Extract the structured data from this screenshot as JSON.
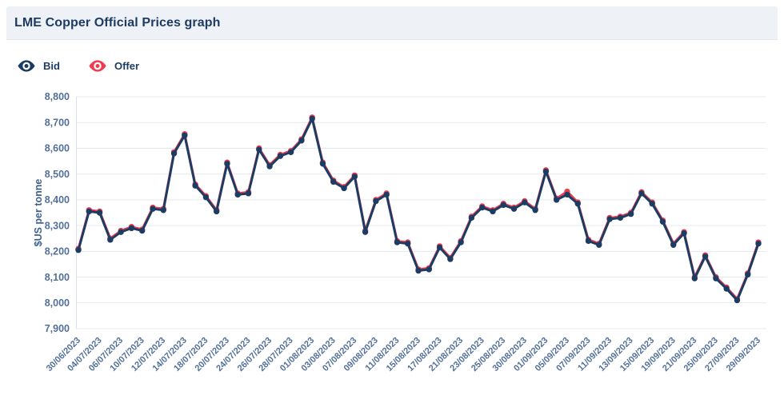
{
  "header": {
    "title": "LME Copper Official Prices graph"
  },
  "legend": {
    "items": [
      {
        "label": "Bid",
        "color": "#1d3c63",
        "icon": "eye-icon"
      },
      {
        "label": "Offer",
        "color": "#ee3d4e",
        "icon": "eye-icon"
      }
    ]
  },
  "colors": {
    "navy": "#1d3c63",
    "red": "#ee3d4e",
    "tick_text": "#527099",
    "gridline": "#e4e9f1",
    "axis_line": "#d9e0ea",
    "header_bg": "#eef1f6"
  },
  "chart_data": {
    "type": "line",
    "title": "LME Copper Official Prices graph",
    "xlabel": "",
    "ylabel": "$US per tonne",
    "ylim": [
      7900,
      8800
    ],
    "ytick_step": 100,
    "ytick_labels": [
      "8,800",
      "8,700",
      "8,600",
      "8,500",
      "8,400",
      "8,300",
      "8,200",
      "8,100",
      "8,000",
      "7,900"
    ],
    "grid": "horizontal",
    "legend_position": "top-left",
    "x_label_every": 2,
    "x": [
      "30/06/2023",
      "03/07/2023",
      "04/07/2023",
      "05/07/2023",
      "06/07/2023",
      "07/07/2023",
      "10/07/2023",
      "11/07/2023",
      "12/07/2023",
      "13/07/2023",
      "14/07/2023",
      "17/07/2023",
      "18/07/2023",
      "19/07/2023",
      "20/07/2023",
      "21/07/2023",
      "24/07/2023",
      "25/07/2023",
      "26/07/2023",
      "27/07/2023",
      "28/07/2023",
      "31/07/2023",
      "01/08/2023",
      "02/08/2023",
      "03/08/2023",
      "04/08/2023",
      "07/08/2023",
      "08/08/2023",
      "09/08/2023",
      "10/08/2023",
      "11/08/2023",
      "14/08/2023",
      "15/08/2023",
      "16/08/2023",
      "17/08/2023",
      "18/08/2023",
      "21/08/2023",
      "22/08/2023",
      "23/08/2023",
      "24/08/2023",
      "25/08/2023",
      "29/08/2023",
      "30/08/2023",
      "31/08/2023",
      "01/09/2023",
      "04/09/2023",
      "05/09/2023",
      "06/09/2023",
      "07/09/2023",
      "08/09/2023",
      "11/09/2023",
      "12/09/2023",
      "13/09/2023",
      "14/09/2023",
      "15/09/2023",
      "18/09/2023",
      "19/09/2023",
      "20/09/2023",
      "21/09/2023",
      "22/09/2023",
      "25/09/2023",
      "26/09/2023",
      "27/09/2023",
      "28/09/2023",
      "29/09/2023"
    ],
    "series": [
      {
        "name": "Offer",
        "color": "#ee3d4e",
        "values": [
          8210,
          8360,
          8355,
          8250,
          8280,
          8295,
          8285,
          8370,
          8365,
          8585,
          8655,
          8460,
          8415,
          8360,
          8545,
          8425,
          8430,
          8600,
          8535,
          8575,
          8590,
          8635,
          8720,
          8545,
          8475,
          8450,
          8495,
          8280,
          8400,
          8425,
          8240,
          8235,
          8130,
          8135,
          8220,
          8175,
          8240,
          8335,
          8375,
          8360,
          8385,
          8370,
          8395,
          8365,
          8515,
          8405,
          8432,
          8390,
          8245,
          8230,
          8330,
          8335,
          8350,
          8430,
          8390,
          8320,
          8230,
          8275,
          8100,
          8185,
          8100,
          8060,
          8015,
          8115,
          8235
        ]
      },
      {
        "name": "Bid",
        "color": "#1d3c63",
        "values": [
          8205,
          8355,
          8350,
          8245,
          8275,
          8290,
          8280,
          8365,
          8360,
          8580,
          8650,
          8455,
          8410,
          8355,
          8540,
          8420,
          8425,
          8595,
          8530,
          8570,
          8585,
          8630,
          8715,
          8540,
          8470,
          8445,
          8490,
          8275,
          8395,
          8420,
          8235,
          8230,
          8125,
          8130,
          8215,
          8170,
          8235,
          8330,
          8370,
          8355,
          8380,
          8365,
          8390,
          8360,
          8510,
          8400,
          8420,
          8385,
          8240,
          8225,
          8325,
          8330,
          8345,
          8425,
          8385,
          8315,
          8225,
          8270,
          8095,
          8180,
          8095,
          8055,
          8010,
          8110,
          8230
        ]
      }
    ]
  }
}
